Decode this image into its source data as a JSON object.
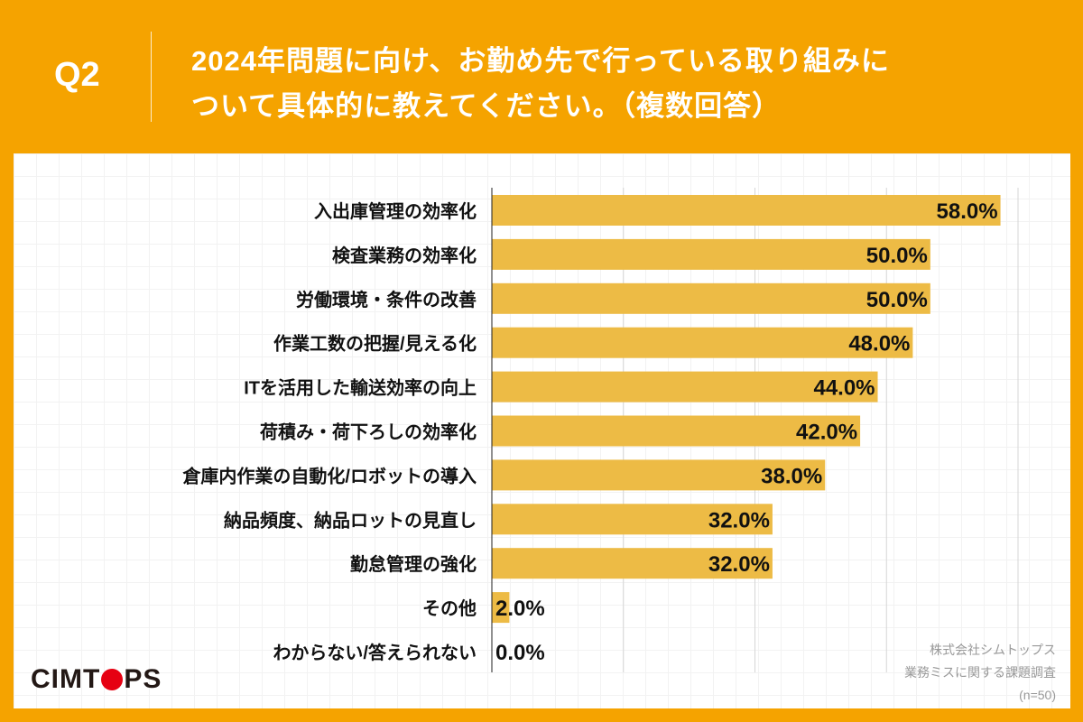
{
  "header": {
    "question_number": "Q2",
    "title_line1": "2024年問題に向け、お勤め先で行っている取り組みに",
    "title_line2": "ついて具体的に教えてください。（複数回答）"
  },
  "brand": {
    "logo_text_before": "CIMT",
    "logo_text_after": "PS",
    "logo_dot_color": "#E60012"
  },
  "source": {
    "company": "株式会社シムトップス",
    "survey": "業務ミスに関する課題調査",
    "sample": "(n=50)"
  },
  "colors": {
    "background": "#F5A300",
    "bar": "#EDBB45"
  },
  "chart_data": {
    "type": "bar",
    "orientation": "horizontal",
    "xlim": [
      0,
      60
    ],
    "grid": true,
    "grid_step": 15,
    "categories": [
      "入出庫管理の効率化",
      "検査業務の効率化",
      "労働環境・条件の改善",
      "作業工数の把握/見える化",
      "ITを活用した輸送効率の向上",
      "荷積み・荷下ろしの効率化",
      "倉庫内作業の自動化/ロボットの導入",
      "納品頻度、納品ロットの見直し",
      "勤怠管理の強化",
      "その他",
      "わからない/答えられない"
    ],
    "values": [
      58.0,
      50.0,
      50.0,
      48.0,
      44.0,
      42.0,
      38.0,
      32.0,
      32.0,
      2.0,
      0.0
    ],
    "labels": [
      "58.0%",
      "50.0%",
      "50.0%",
      "48.0%",
      "44.0%",
      "42.0%",
      "38.0%",
      "32.0%",
      "32.0%",
      "2.0%",
      "0.0%"
    ]
  }
}
